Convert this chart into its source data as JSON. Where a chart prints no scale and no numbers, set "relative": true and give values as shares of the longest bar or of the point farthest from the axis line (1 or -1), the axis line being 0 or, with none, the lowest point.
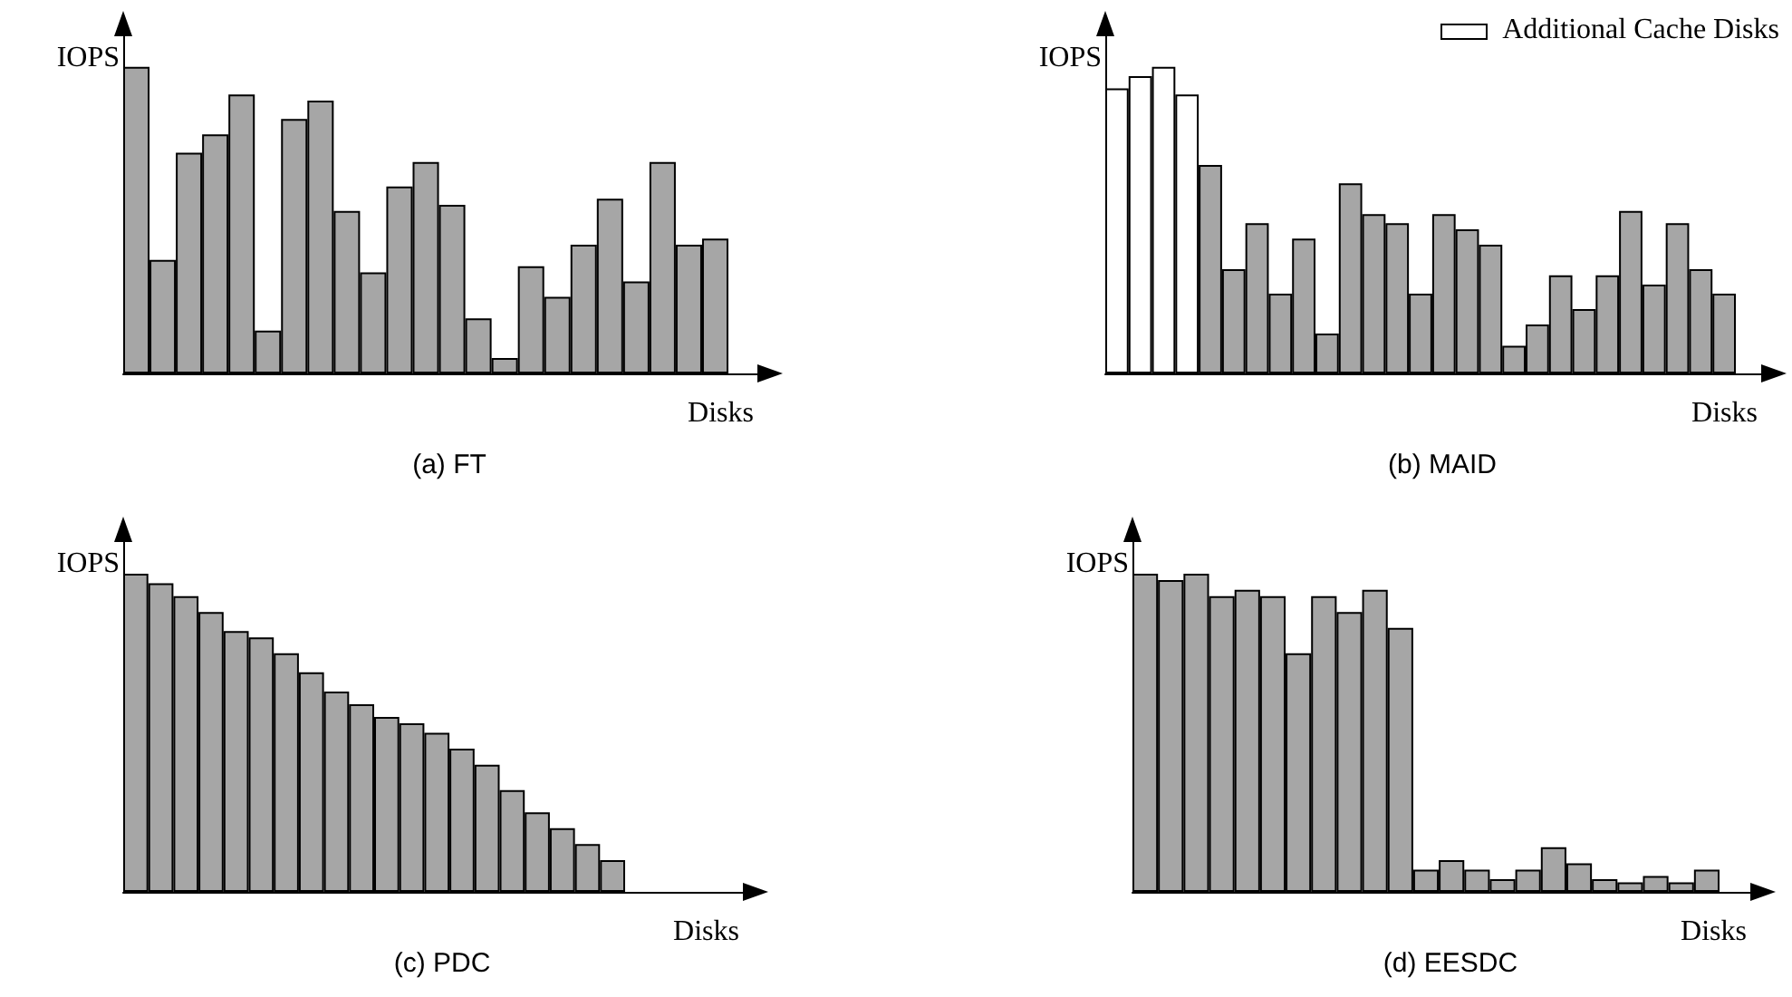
{
  "chart_data": [
    {
      "type": "bar",
      "title": "(a) FT",
      "xlabel": "Disks",
      "ylabel": "IOPS",
      "relative": true,
      "categories": [
        null,
        null,
        null,
        null,
        null,
        null,
        null,
        null,
        null,
        null,
        null,
        null,
        null,
        null,
        null,
        null,
        null,
        null,
        null,
        null,
        null,
        null,
        null
      ],
      "series": [
        {
          "color": "#a6a6a6",
          "values": [
            1.0,
            0.37,
            0.72,
            0.78,
            0.91,
            0.14,
            0.83,
            0.89,
            0.53,
            0.33,
            0.61,
            0.69,
            0.55,
            0.18,
            0.05,
            0.35,
            0.25,
            0.42,
            0.57,
            0.3,
            0.69,
            0.42,
            0.44
          ]
        }
      ]
    },
    {
      "type": "bar",
      "title": "(b) MAID",
      "xlabel": "Disks",
      "ylabel": "IOPS",
      "relative": true,
      "annotations": [
        "Additional Cache Disks"
      ],
      "categories": [
        null,
        null,
        null,
        null,
        null,
        null,
        null,
        null,
        null,
        null,
        null,
        null,
        null,
        null,
        null,
        null,
        null,
        null,
        null,
        null,
        null,
        null,
        null,
        null,
        null,
        null,
        null
      ],
      "series": [
        {
          "colors": [
            "#ffffff",
            "#ffffff",
            "#ffffff",
            "#ffffff",
            "#a6a6a6",
            "#a6a6a6",
            "#a6a6a6",
            "#a6a6a6",
            "#a6a6a6",
            "#a6a6a6",
            "#a6a6a6",
            "#a6a6a6",
            "#a6a6a6",
            "#a6a6a6",
            "#a6a6a6",
            "#a6a6a6",
            "#a6a6a6",
            "#a6a6a6",
            "#a6a6a6",
            "#a6a6a6",
            "#a6a6a6",
            "#a6a6a6",
            "#a6a6a6",
            "#a6a6a6",
            "#a6a6a6",
            "#a6a6a6",
            "#a6a6a6"
          ],
          "values": [
            0.93,
            0.97,
            1.0,
            0.91,
            0.68,
            0.34,
            0.49,
            0.26,
            0.44,
            0.13,
            0.62,
            0.52,
            0.49,
            0.26,
            0.52,
            0.47,
            0.42,
            0.09,
            0.16,
            0.32,
            0.21,
            0.32,
            0.53,
            0.29,
            0.49,
            0.34,
            0.26
          ]
        }
      ]
    },
    {
      "type": "bar",
      "title": "(c) PDC",
      "xlabel": "Disks",
      "ylabel": "IOPS",
      "relative": true,
      "categories": [
        null,
        null,
        null,
        null,
        null,
        null,
        null,
        null,
        null,
        null,
        null,
        null,
        null,
        null,
        null,
        null,
        null,
        null,
        null,
        null
      ],
      "series": [
        {
          "color": "#a6a6a6",
          "values": [
            1.0,
            0.97,
            0.93,
            0.88,
            0.82,
            0.8,
            0.75,
            0.69,
            0.63,
            0.59,
            0.55,
            0.53,
            0.5,
            0.45,
            0.4,
            0.32,
            0.25,
            0.2,
            0.15,
            0.1
          ]
        }
      ]
    },
    {
      "type": "bar",
      "title": "(d) EESDC",
      "xlabel": "Disks",
      "ylabel": "IOPS",
      "relative": true,
      "categories": [
        null,
        null,
        null,
        null,
        null,
        null,
        null,
        null,
        null,
        null,
        null,
        null,
        null,
        null,
        null,
        null,
        null,
        null,
        null,
        null,
        null,
        null,
        null
      ],
      "series": [
        {
          "color": "#a6a6a6",
          "values": [
            1.0,
            0.98,
            1.0,
            0.93,
            0.95,
            0.93,
            0.75,
            0.93,
            0.88,
            0.95,
            0.83,
            0.07,
            0.1,
            0.07,
            0.04,
            0.07,
            0.14,
            0.09,
            0.04,
            0.03,
            0.05,
            0.03,
            0.07
          ]
        }
      ]
    }
  ]
}
